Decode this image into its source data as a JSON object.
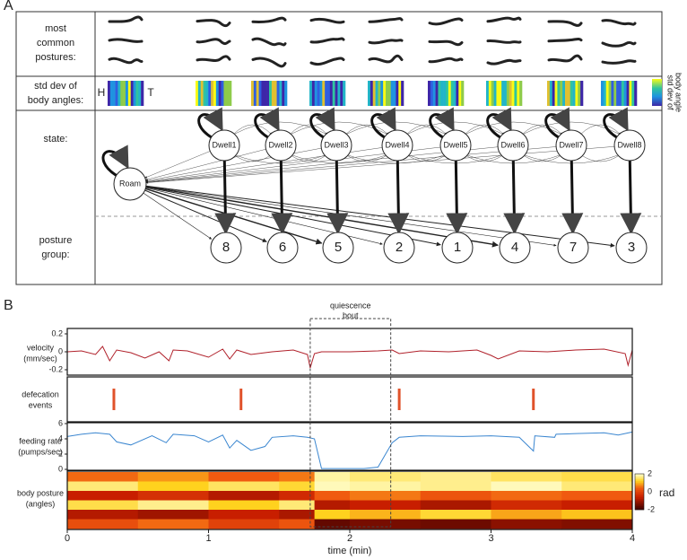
{
  "panel_a": {
    "label": "A",
    "row_labels": {
      "postures": [
        "most",
        "common",
        "postures:"
      ],
      "std": [
        "std dev of",
        "body angles:"
      ],
      "state": [
        "state:"
      ],
      "group": [
        "posture",
        "group:"
      ]
    },
    "head": "H",
    "tail": "T",
    "colorbar_label": [
      "std dev of",
      "body angle"
    ],
    "roam": "Roam",
    "dwell_states": [
      "Dwell1",
      "Dwell2",
      "Dwell3",
      "Dwell4",
      "Dwell5",
      "Dwell6",
      "Dwell7",
      "Dwell8"
    ],
    "posture_groups": [
      "8",
      "6",
      "5",
      "2",
      "1",
      "4",
      "7",
      "3"
    ]
  },
  "panel_b": {
    "label": "B"
  },
  "quiescence_bout": {
    "label": [
      "quiescence",
      "bout"
    ],
    "x": [
      1.72,
      2.29
    ]
  },
  "chart_data": [
    {
      "type": "line",
      "y_label": [
        "velocity",
        "(mm/sec)"
      ],
      "color": "#b0202a",
      "x": [
        0,
        0.1,
        0.2,
        0.25,
        0.3,
        0.35,
        0.45,
        0.55,
        0.65,
        0.72,
        0.75,
        0.85,
        1.0,
        1.1,
        1.15,
        1.2,
        1.3,
        1.45,
        1.6,
        1.7,
        1.72,
        1.75,
        1.8,
        2.0,
        2.2,
        2.3,
        2.35,
        2.5,
        2.7,
        2.9,
        3.0,
        3.05,
        3.2,
        3.4,
        3.6,
        3.8,
        3.95,
        3.97,
        4.0
      ],
      "values": [
        0,
        0.01,
        -0.03,
        0.06,
        -0.1,
        0.02,
        -0.01,
        -0.07,
        0.0,
        -0.1,
        0.02,
        0.01,
        -0.06,
        0.03,
        -0.08,
        0.02,
        -0.03,
        0.0,
        0.02,
        -0.03,
        -0.18,
        -0.02,
        0.0,
        0.0,
        0.01,
        0.02,
        -0.02,
        0.01,
        0.0,
        0.02,
        -0.04,
        -0.08,
        0.01,
        0.0,
        0.02,
        0.03,
        -0.02,
        -0.15,
        0.02
      ],
      "ylim": [
        -0.25,
        0.25
      ],
      "yticks": [
        -0.2,
        0,
        0.2
      ]
    },
    {
      "type": "event",
      "y_label": [
        "defecation",
        "events"
      ],
      "color": "#e0522a",
      "x": [
        0.33,
        1.23,
        2.35,
        3.3
      ]
    },
    {
      "type": "line",
      "y_label": [
        "feeding rate",
        "(pumps/sec)"
      ],
      "color": "#3a86d0",
      "x": [
        0,
        0.1,
        0.2,
        0.3,
        0.35,
        0.45,
        0.6,
        0.7,
        0.75,
        0.9,
        1.0,
        1.1,
        1.15,
        1.2,
        1.3,
        1.4,
        1.45,
        1.6,
        1.7,
        1.75,
        1.8,
        1.85,
        2.1,
        2.2,
        2.3,
        2.35,
        2.5,
        2.8,
        3.0,
        3.2,
        3.3,
        3.31,
        3.45,
        3.46,
        3.6,
        3.8,
        3.9,
        4.0
      ],
      "values": [
        4.3,
        4.6,
        4.8,
        4.6,
        3.6,
        3.2,
        4.4,
        3.5,
        4.6,
        4.4,
        3.6,
        4.5,
        2.8,
        3.8,
        2.5,
        3.0,
        4.2,
        4.4,
        4.2,
        4.0,
        0.1,
        0.1,
        0.1,
        0.3,
        3.5,
        4.2,
        4.4,
        4.3,
        4.4,
        4.2,
        2.4,
        4.4,
        4.2,
        4.6,
        4.7,
        4.8,
        4.5,
        4.9
      ],
      "ylim": [
        0,
        6
      ],
      "yticks": [
        0,
        2,
        4,
        6
      ]
    },
    {
      "type": "heatmap",
      "y_label": [
        "body posture",
        "(angles)"
      ],
      "x_label": "time (min)",
      "bins": [
        0,
        0.5,
        1,
        1.5,
        1.75,
        2,
        2.5,
        3,
        3.5,
        4
      ],
      "values": [
        [
          0.5,
          0.8,
          0.4,
          0.6,
          1.8,
          1.6,
          1.7,
          1.5,
          1.4
        ],
        [
          1.6,
          1.2,
          1.5,
          1.3,
          1.9,
          1.8,
          1.7,
          1.9,
          1.6
        ],
        [
          -0.6,
          -0.3,
          -0.8,
          -0.4,
          0.4,
          0.6,
          0.3,
          0.5,
          0.4
        ],
        [
          1.4,
          1.7,
          1.2,
          1.6,
          -0.8,
          -0.6,
          -0.9,
          -0.4,
          -0.6
        ],
        [
          -0.8,
          -1.0,
          -0.6,
          -0.9,
          1.2,
          1.0,
          1.3,
          0.9,
          1.1
        ],
        [
          0.2,
          0.5,
          0.0,
          0.3,
          -1.6,
          -1.4,
          -1.5,
          -1.2,
          -1.3
        ]
      ],
      "xlim": [
        0,
        4
      ],
      "xticks": [
        0,
        1,
        2,
        3,
        4
      ],
      "zlim": [
        -2,
        2
      ],
      "zticks": [
        -2,
        0,
        2
      ],
      "colorbar_label": "rad"
    }
  ]
}
